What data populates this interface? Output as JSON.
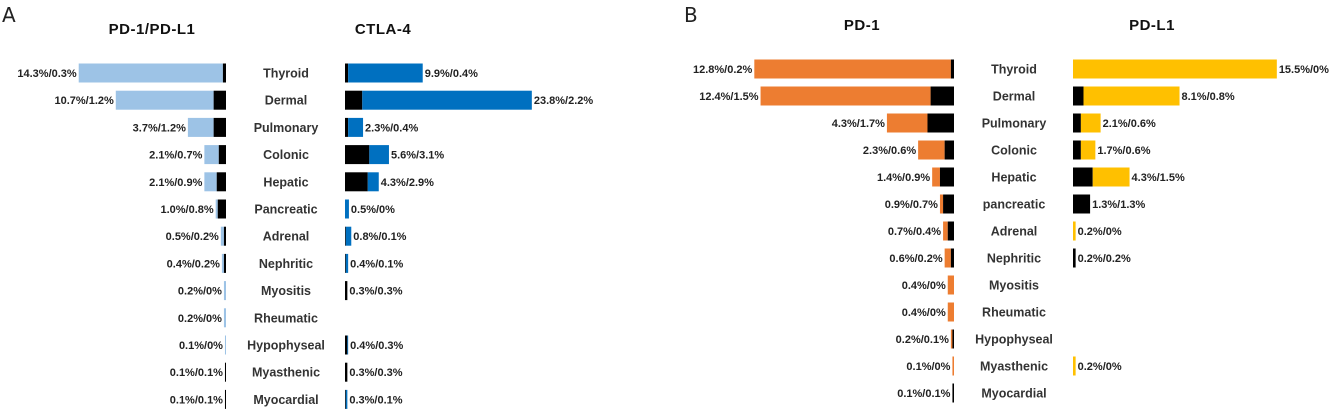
{
  "chart_data": [
    {
      "type": "bar",
      "panel": "A",
      "description": "Stacked horizontal bars: total incidence with the fatal part shown in black",
      "categories": [
        "Thyroid",
        "Dermal",
        "Pulmonary",
        "Colonic",
        "Hepatic",
        "Pancreatic",
        "Adrenal",
        "Nephritic",
        "Myositis",
        "Rheumatic",
        "Hypophyseal",
        "Myasthenic",
        "Myocardial"
      ],
      "left": {
        "title": "PD-1/PD-L1",
        "color": "#9dc3e6",
        "total": [
          14.3,
          10.7,
          3.7,
          2.1,
          2.1,
          1.0,
          0.5,
          0.4,
          0.2,
          0.2,
          0.1,
          0.1,
          0.1
        ],
        "black": [
          0.3,
          1.2,
          1.2,
          0.7,
          0.9,
          0.8,
          0.2,
          0.2,
          0.0,
          0.0,
          0.0,
          0.1,
          0.1
        ],
        "labels": [
          "14.3%/0.3%",
          "10.7%/1.2%",
          "3.7%/1.2%",
          "2.1%/0.7%",
          "2.1%/0.9%",
          "1.0%/0.8%",
          "0.5%/0.2%",
          "0.4%/0.2%",
          "0.2%/0%",
          "0.2%/0%",
          "0.1%/0%",
          "0.1%/0.1%",
          "0.1%/0.1%"
        ]
      },
      "right": {
        "title": "CTLA-4",
        "color": "#0070c0",
        "total": [
          9.9,
          23.8,
          2.3,
          5.6,
          4.3,
          0.5,
          0.8,
          0.4,
          0.3,
          null,
          0.4,
          0.3,
          0.3
        ],
        "black": [
          0.4,
          2.2,
          0.4,
          3.1,
          2.9,
          0.0,
          0.1,
          0.1,
          0.3,
          null,
          0.3,
          0.3,
          0.1
        ],
        "labels": [
          "9.9%/0.4%",
          "23.8%/2.2%",
          "2.3%/0.4%",
          "5.6%/3.1%",
          "4.3%/2.9%",
          "0.5%/0%",
          "0.8%/0.1%",
          "0.4%/0.1%",
          "0.3%/0.3%",
          "",
          "0.4%/0.3%",
          "0.3%/0.3%",
          "0.3%/0.1%"
        ]
      }
    },
    {
      "type": "bar",
      "panel": "B",
      "description": "Stacked horizontal bars: total incidence with the fatal part shown in black",
      "categories": [
        "Thyroid",
        "Dermal",
        "Pulmonary",
        "Colonic",
        "Hepatic",
        "pancreatic",
        "Adrenal",
        "Nephritic",
        "Myositis",
        "Rheumatic",
        "Hypophyseal",
        "Myasthenic",
        "Myocardial"
      ],
      "left": {
        "title": "PD-1",
        "color": "#ed7d31",
        "total": [
          12.8,
          12.4,
          4.3,
          2.3,
          1.4,
          0.9,
          0.7,
          0.6,
          0.4,
          0.4,
          0.2,
          0.1,
          0.1
        ],
        "black": [
          0.2,
          1.5,
          1.7,
          0.6,
          0.9,
          0.7,
          0.4,
          0.2,
          0.0,
          0.0,
          0.1,
          0.0,
          0.1
        ],
        "labels": [
          "12.8%/0.2%",
          "12.4%/1.5%",
          "4.3%/1.7%",
          "2.3%/0.6%",
          "1.4%/0.9%",
          "0.9%/0.7%",
          "0.7%/0.4%",
          "0.6%/0.2%",
          "0.4%/0%",
          "0.4%/0%",
          "0.2%/0.1%",
          "0.1%/0%",
          "0.1%/0.1%"
        ]
      },
      "right": {
        "title": "PD-L1",
        "color": "#ffc000",
        "total": [
          15.5,
          8.1,
          2.1,
          1.7,
          4.3,
          1.3,
          0.2,
          0.2,
          null,
          null,
          null,
          0.2,
          null
        ],
        "black": [
          0.0,
          0.8,
          0.6,
          0.6,
          1.5,
          1.3,
          0.0,
          0.2,
          null,
          null,
          null,
          0.0,
          null
        ],
        "labels": [
          "15.5%/0%",
          "8.1%/0.8%",
          "2.1%/0.6%",
          "1.7%/0.6%",
          "4.3%/1.5%",
          "1.3%/1.3%",
          "0.2%/0%",
          "0.2%/0.2%",
          "",
          "",
          "",
          "0.2%/0%",
          ""
        ]
      }
    }
  ]
}
